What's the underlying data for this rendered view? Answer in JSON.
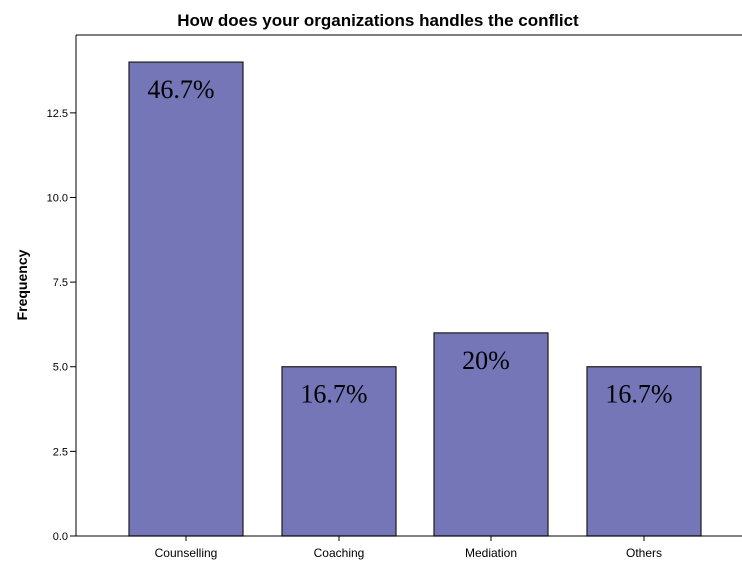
{
  "chart_data": {
    "type": "bar",
    "title": "How does your organizations handles the conflict",
    "xlabel": "",
    "ylabel": "Frequency",
    "categories": [
      "Counselling",
      "Coaching",
      "Mediation",
      "Others"
    ],
    "values": [
      14,
      5,
      6,
      5
    ],
    "data_labels": [
      "46.7%",
      "16.7%",
      "20%",
      "16.7%"
    ],
    "yticks": [
      "0.0",
      "2.5",
      "5.0",
      "7.5",
      "10.0",
      "12.5"
    ],
    "ylim": [
      0,
      14.8
    ],
    "grid": false,
    "legend": "none",
    "colors": {
      "bar": "#7476b7",
      "bar_edge": "#1b1b1b",
      "axis": "#000000"
    }
  }
}
